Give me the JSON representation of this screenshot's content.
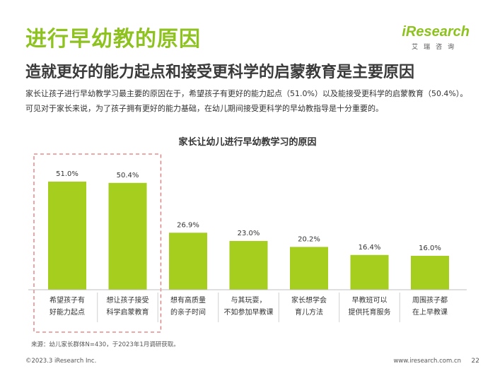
{
  "header": {
    "title": "进行早幼教的原因",
    "subtitle": "造就更好的能力起点和接受更科学的启蒙教育是主要原因",
    "description": "家长让孩子进行早幼教学习最主要的原因在于，希望孩子有更好的能力起点（51.0%）以及能接受更科学的启蒙教育（50.4%）。可见对于家长来说，为了孩子拥有更好的能力基础，在幼儿期间接受更科学的早幼教指导是十分重要的。"
  },
  "logo": {
    "name": "iResearch",
    "sub": "艾瑞咨询"
  },
  "chart_data": {
    "type": "bar",
    "title": "家长让幼儿进行早幼教学习的原因",
    "categories": [
      [
        "希望孩子有",
        "好能力起点"
      ],
      [
        "想让孩子接受",
        "科学启蒙教育"
      ],
      [
        "想有高质量",
        "的亲子时间"
      ],
      [
        "与其玩耍，",
        "不如参加早教课"
      ],
      [
        "家长想学会",
        "育儿方法"
      ],
      [
        "早教班可以",
        "提供托育服务"
      ],
      [
        "周围孩子都",
        "在上早教课"
      ]
    ],
    "values": [
      51.0,
      50.4,
      26.9,
      23.0,
      20.2,
      16.4,
      16.0
    ],
    "value_labels": [
      "51.0%",
      "50.4%",
      "26.9%",
      "23.0%",
      "20.2%",
      "16.4%",
      "16.0%"
    ],
    "highlighted": [
      0,
      1
    ],
    "ylim": [
      0,
      60
    ],
    "grid": false,
    "bar_color": "#a6ce1f",
    "highlight_border_color": "#e57373"
  },
  "footer": {
    "source": "来源：幼儿家长群体N=430，于2023年1月调研获取。",
    "copyright": "©2023.3 iResearch Inc.",
    "website": "www.iresearch.com.cn",
    "page": "22"
  }
}
